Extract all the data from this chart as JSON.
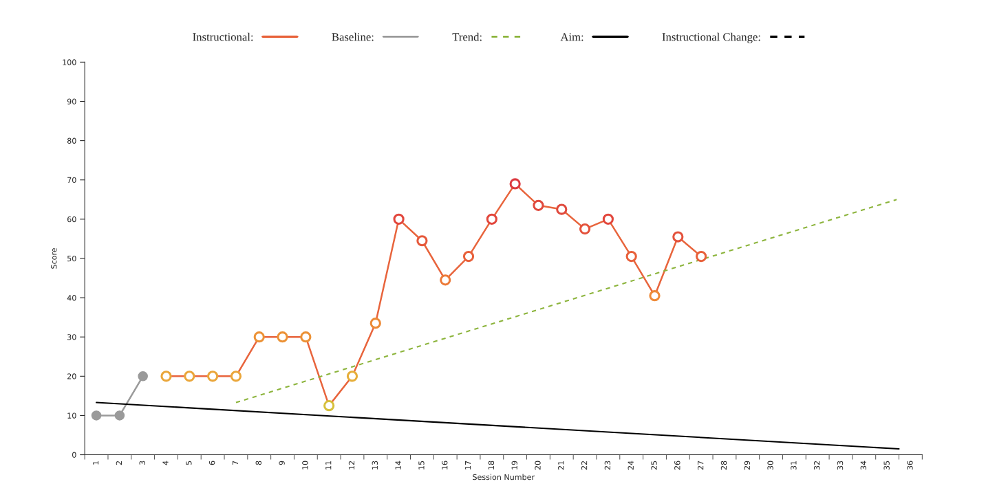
{
  "chart_data": {
    "type": "line",
    "xlabel": "Session Number",
    "ylabel": "Score",
    "xlim": [
      0.5,
      36.5
    ],
    "xticks": [
      1,
      2,
      3,
      4,
      5,
      6,
      7,
      8,
      9,
      10,
      11,
      12,
      13,
      14,
      15,
      16,
      17,
      18,
      19,
      20,
      21,
      22,
      23,
      24,
      25,
      26,
      27,
      28,
      29,
      30,
      31,
      32,
      33,
      34,
      35,
      36,
      {
        "value": 0.5,
        "label": null
      },
      {
        "value": 1.5,
        "label": null
      },
      {
        "value": 2.5,
        "label": null
      },
      {
        "value": 3.5,
        "label": null
      },
      {
        "value": 4.5,
        "label": null
      },
      {
        "value": 5.5,
        "label": null
      },
      {
        "value": 6.5,
        "label": null
      },
      {
        "value": 7.5,
        "label": null
      },
      {
        "value": 8.5,
        "label": null
      },
      {
        "value": 9.5,
        "label": null
      },
      {
        "value": 10.5,
        "label": null
      },
      {
        "value": 11.5,
        "label": null
      },
      {
        "value": 12.5,
        "label": null
      },
      {
        "value": 13.5,
        "label": null
      },
      {
        "value": 14.5,
        "label": null
      },
      {
        "value": 15.5,
        "label": null
      },
      {
        "value": 16.5,
        "label": null
      },
      {
        "value": 17.5,
        "label": null
      },
      {
        "value": 18.5,
        "label": null
      },
      {
        "value": 19.5,
        "label": null
      },
      {
        "value": 20.5,
        "label": null
      },
      {
        "value": 21.5,
        "label": null
      },
      {
        "value": 22.5,
        "label": null
      },
      {
        "value": 23.5,
        "label": null
      },
      {
        "value": 24.5,
        "label": null
      },
      {
        "value": 25.5,
        "label": null
      },
      {
        "value": 26.5,
        "label": null
      },
      {
        "value": 27.5,
        "label": null
      },
      {
        "value": 28.5,
        "label": null
      },
      {
        "value": 29.5,
        "label": null
      },
      {
        "value": 30.5,
        "label": null
      },
      {
        "value": 31.5,
        "label": null
      },
      {
        "value": 32.5,
        "label": null
      },
      {
        "value": 33.5,
        "label": null
      },
      {
        "value": 34.5,
        "label": null
      },
      {
        "value": 35.5,
        "label": null
      },
      {
        "value": 36.5,
        "label": null
      }
    ],
    "ylim": [
      0,
      100
    ],
    "yticks": [
      0,
      10,
      20,
      30,
      40,
      50,
      60,
      70,
      80,
      90,
      100
    ],
    "grid": false,
    "legend": "top",
    "series": [
      {
        "name": "Instructional:",
        "color": "#e8643c",
        "marker": "circle",
        "line_style": "solid",
        "x": [
          4,
          5,
          6,
          7,
          8,
          9,
          10,
          11,
          12,
          13,
          14,
          15,
          16,
          17,
          18,
          19,
          20,
          21,
          22,
          23,
          24,
          25,
          26,
          27
        ],
        "values": [
          20,
          20,
          20,
          20,
          30,
          30,
          30,
          12.5,
          20,
          33.5,
          60,
          54.5,
          44.5,
          50.5,
          60,
          69,
          63.5,
          62.5,
          57.5,
          60,
          50.5,
          40.5,
          55.5,
          50.5
        ],
        "colors": [
          "#eaa63a",
          "#eaa63a",
          "#eaa63a",
          "#eaa63a",
          "#ec9236",
          "#ec9236",
          "#ec9236",
          "#d6c03c",
          "#e6ae3a",
          "#ec8a36",
          "#e2463c",
          "#e6583a",
          "#ec7a38",
          "#e8603a",
          "#e2463c",
          "#dc3a40",
          "#e04a3e",
          "#e04a3e",
          "#e4523c",
          "#e2463c",
          "#e8603a",
          "#ee8a38",
          "#e4523c",
          "#e8603a"
        ]
      },
      {
        "name": "Baseline:",
        "color": "#9a9a9a",
        "marker": "circle",
        "line_style": "solid",
        "x": [
          1,
          2,
          3
        ],
        "values": [
          10,
          10,
          20
        ]
      },
      {
        "name": "Trend:",
        "color": "#8cb43c",
        "marker": "none",
        "line_style": "dashed",
        "x": [
          7,
          35.4
        ],
        "values": [
          13.3,
          65
        ]
      },
      {
        "name": "Aim:",
        "color": "#000000",
        "marker": "none",
        "line_style": "solid",
        "x": [
          1,
          35.5
        ],
        "values": [
          13.3,
          1.5
        ]
      },
      {
        "name": "Instructional Change:",
        "color": "#000000",
        "marker": "none",
        "line_style": "dashed"
      }
    ]
  }
}
